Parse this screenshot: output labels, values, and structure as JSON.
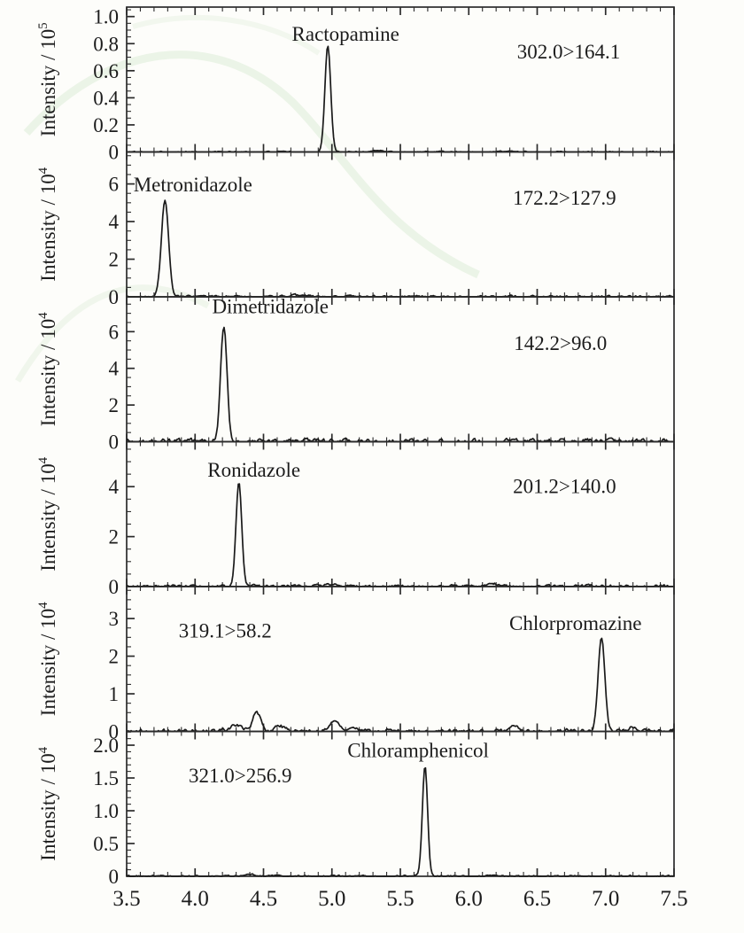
{
  "figure": {
    "description": "Six stacked MRM chromatogram panels",
    "colors": {
      "trace": "#1a1a1a",
      "axis": "#2b2b2b",
      "text": "#1c1c1c",
      "background": "#fdfdfa",
      "watermark": "#e0eedb"
    },
    "y_axis_label_prefix": "Intensity / 10",
    "x_axis": {
      "min": 3.5,
      "max": 7.5,
      "major_tick_step": 0.5,
      "minor_tick_step": 0.1,
      "tick_labels": [
        "3.5",
        "4.0",
        "4.5",
        "5.0",
        "5.5",
        "6.0",
        "6.5",
        "7.0",
        "7.5"
      ]
    }
  },
  "chart_data": [
    {
      "type": "line",
      "compound": "Ractopamine",
      "transition": "302.0>164.1",
      "exponent": "5",
      "ylim": [
        0,
        1.07
      ],
      "yticks": [
        "0",
        "0.2",
        "0.4",
        "0.6",
        "0.8",
        "1.0"
      ],
      "ytick_values": [
        0,
        0.2,
        0.4,
        0.6,
        0.8,
        1.0
      ],
      "minor_step": 0.05,
      "retention_time": 4.97,
      "peak_height": 0.79,
      "peaks": [
        {
          "rt": 4.97,
          "height": 0.785,
          "sigma": 0.021
        },
        {
          "rt": 5.33,
          "height": 0.012,
          "sigma": 0.04
        },
        {
          "rt": 6.3,
          "height": 0.006,
          "sigma": 0.06
        }
      ],
      "noise": 0.004,
      "seed": 101,
      "compound_label_pos": {
        "rt": 5.1,
        "value": 0.82,
        "anchor": "middle"
      },
      "transition_label_pos": {
        "rt": 6.73,
        "value": 0.69,
        "anchor": "middle"
      }
    },
    {
      "type": "line",
      "compound": "Metronidazole",
      "transition": "172.2>127.9",
      "exponent": "4",
      "ylim": [
        0,
        7.7
      ],
      "yticks": [
        "0",
        "2",
        "4",
        "6"
      ],
      "ytick_values": [
        0,
        2,
        4,
        6
      ],
      "minor_step": 0.5,
      "retention_time": 3.78,
      "peak_height": 5.15,
      "peaks": [
        {
          "rt": 3.78,
          "height": 5.15,
          "sigma": 0.026
        },
        {
          "rt": 4.78,
          "height": 0.09,
          "sigma": 0.05
        },
        {
          "rt": 4.3,
          "height": 0.05,
          "sigma": 0.04
        },
        {
          "rt": 5.6,
          "height": 0.06,
          "sigma": 0.05
        }
      ],
      "noise": 0.05,
      "seed": 202,
      "compound_label_pos": {
        "rt": 3.55,
        "value": 5.6,
        "anchor": "start"
      },
      "transition_label_pos": {
        "rt": 6.7,
        "value": 4.9,
        "anchor": "middle"
      }
    },
    {
      "type": "line",
      "compound": "Dimetridazole",
      "transition": "142.2>96.0",
      "exponent": "4",
      "ylim": [
        0,
        7.9
      ],
      "yticks": [
        "0",
        "2",
        "4",
        "6"
      ],
      "ytick_values": [
        0,
        2,
        4,
        6
      ],
      "minor_step": 0.5,
      "retention_time": 4.21,
      "peak_height": 6.3,
      "peaks": [
        {
          "rt": 4.21,
          "height": 6.3,
          "sigma": 0.023
        }
      ],
      "noise": 0.11,
      "seed": 303,
      "compound_label_pos": {
        "rt": 4.55,
        "value": 7.0,
        "anchor": "middle"
      },
      "transition_label_pos": {
        "rt": 6.67,
        "value": 5.0,
        "anchor": "middle"
      }
    },
    {
      "type": "line",
      "compound": "Ronidazole",
      "transition": "201.2>140.0",
      "exponent": "4",
      "ylim": [
        0,
        5.8
      ],
      "yticks": [
        "0",
        "2",
        "4"
      ],
      "ytick_values": [
        0,
        2,
        4
      ],
      "minor_step": 0.5,
      "retention_time": 4.32,
      "peak_height": 4.2,
      "peaks": [
        {
          "rt": 4.32,
          "height": 4.2,
          "sigma": 0.021
        },
        {
          "rt": 6.2,
          "height": 0.08,
          "sigma": 0.05
        },
        {
          "rt": 5.0,
          "height": 0.05,
          "sigma": 0.05
        }
      ],
      "noise": 0.05,
      "seed": 404,
      "compound_label_pos": {
        "rt": 4.43,
        "value": 4.4,
        "anchor": "middle"
      },
      "transition_label_pos": {
        "rt": 6.7,
        "value": 3.75,
        "anchor": "middle"
      }
    },
    {
      "type": "line",
      "compound": "Chlorpromazine",
      "transition": "319.1>58.2",
      "exponent": "4",
      "ylim": [
        0,
        3.85
      ],
      "yticks": [
        "0",
        "1",
        "2",
        "3"
      ],
      "ytick_values": [
        0,
        1,
        2,
        3
      ],
      "minor_step": 0.25,
      "retention_time": 6.97,
      "peak_height": 2.5,
      "peaks": [
        {
          "rt": 6.97,
          "height": 2.5,
          "sigma": 0.024
        },
        {
          "rt": 4.45,
          "height": 0.5,
          "sigma": 0.028
        },
        {
          "rt": 4.3,
          "height": 0.17,
          "sigma": 0.04
        },
        {
          "rt": 4.62,
          "height": 0.14,
          "sigma": 0.03
        },
        {
          "rt": 5.02,
          "height": 0.3,
          "sigma": 0.035
        },
        {
          "rt": 5.15,
          "height": 0.12,
          "sigma": 0.03
        },
        {
          "rt": 6.32,
          "height": 0.15,
          "sigma": 0.03
        },
        {
          "rt": 7.2,
          "height": 0.1,
          "sigma": 0.03
        }
      ],
      "noise": 0.045,
      "seed": 505,
      "compound_label_pos": {
        "rt": 6.78,
        "value": 2.7,
        "anchor": "middle"
      },
      "transition_label_pos": {
        "rt": 4.22,
        "value": 2.5,
        "anchor": "middle"
      }
    },
    {
      "type": "line",
      "compound": "Chloramphenicol",
      "transition": "321.0>256.9",
      "exponent": "4",
      "ylim": [
        0,
        2.21
      ],
      "yticks": [
        "0",
        "0.5",
        "1.0",
        "1.5",
        "2.0"
      ],
      "ytick_values": [
        0,
        0.5,
        1.0,
        1.5,
        2.0
      ],
      "minor_step": 0.1,
      "retention_time": 5.68,
      "peak_height": 1.68,
      "peaks": [
        {
          "rt": 5.68,
          "height": 1.68,
          "sigma": 0.019
        },
        {
          "rt": 4.4,
          "height": 0.02,
          "sigma": 0.05
        }
      ],
      "noise": 0.012,
      "seed": 606,
      "compound_label_pos": {
        "rt": 5.63,
        "value": 1.82,
        "anchor": "middle"
      },
      "transition_label_pos": {
        "rt": 4.33,
        "value": 1.43,
        "anchor": "middle"
      }
    }
  ]
}
